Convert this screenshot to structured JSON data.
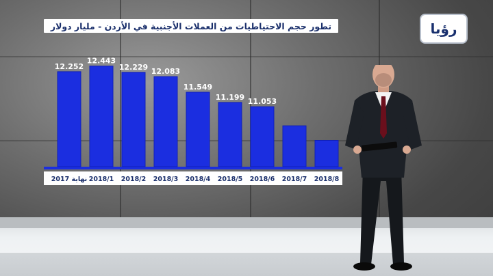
{
  "logo": {
    "text": "رؤيا"
  },
  "colors": {
    "bar": "#1b2ee0",
    "bar_edge": "#1020b8",
    "axis": "#1b2ee0",
    "title": "#1a2f6b"
  },
  "chart_data": {
    "type": "bar",
    "title": "تطور حجم الاحتياطيات من العملات الأجنبية في الأردن - مليار دولار",
    "categories": [
      "نهاية 2017",
      "2018/1",
      "2018/2",
      "2018/3",
      "2018/4",
      "2018/5",
      "2018/6",
      "2018/7",
      "2018/8"
    ],
    "values": [
      12.252,
      12.443,
      12.229,
      12.083,
      11.549,
      11.199,
      11.053,
      null,
      null
    ],
    "value_labels": [
      "12.252",
      "12.443",
      "12.229",
      "12.083",
      "11.549",
      "11.199",
      "11.053",
      "",
      ""
    ],
    "estimated_values": [
      12.252,
      12.443,
      12.229,
      12.083,
      11.549,
      11.199,
      11.053,
      10.4,
      9.9
    ],
    "ylim": [
      9.0,
      12.6
    ],
    "xlabel": "",
    "ylabel": "",
    "grid": false
  }
}
